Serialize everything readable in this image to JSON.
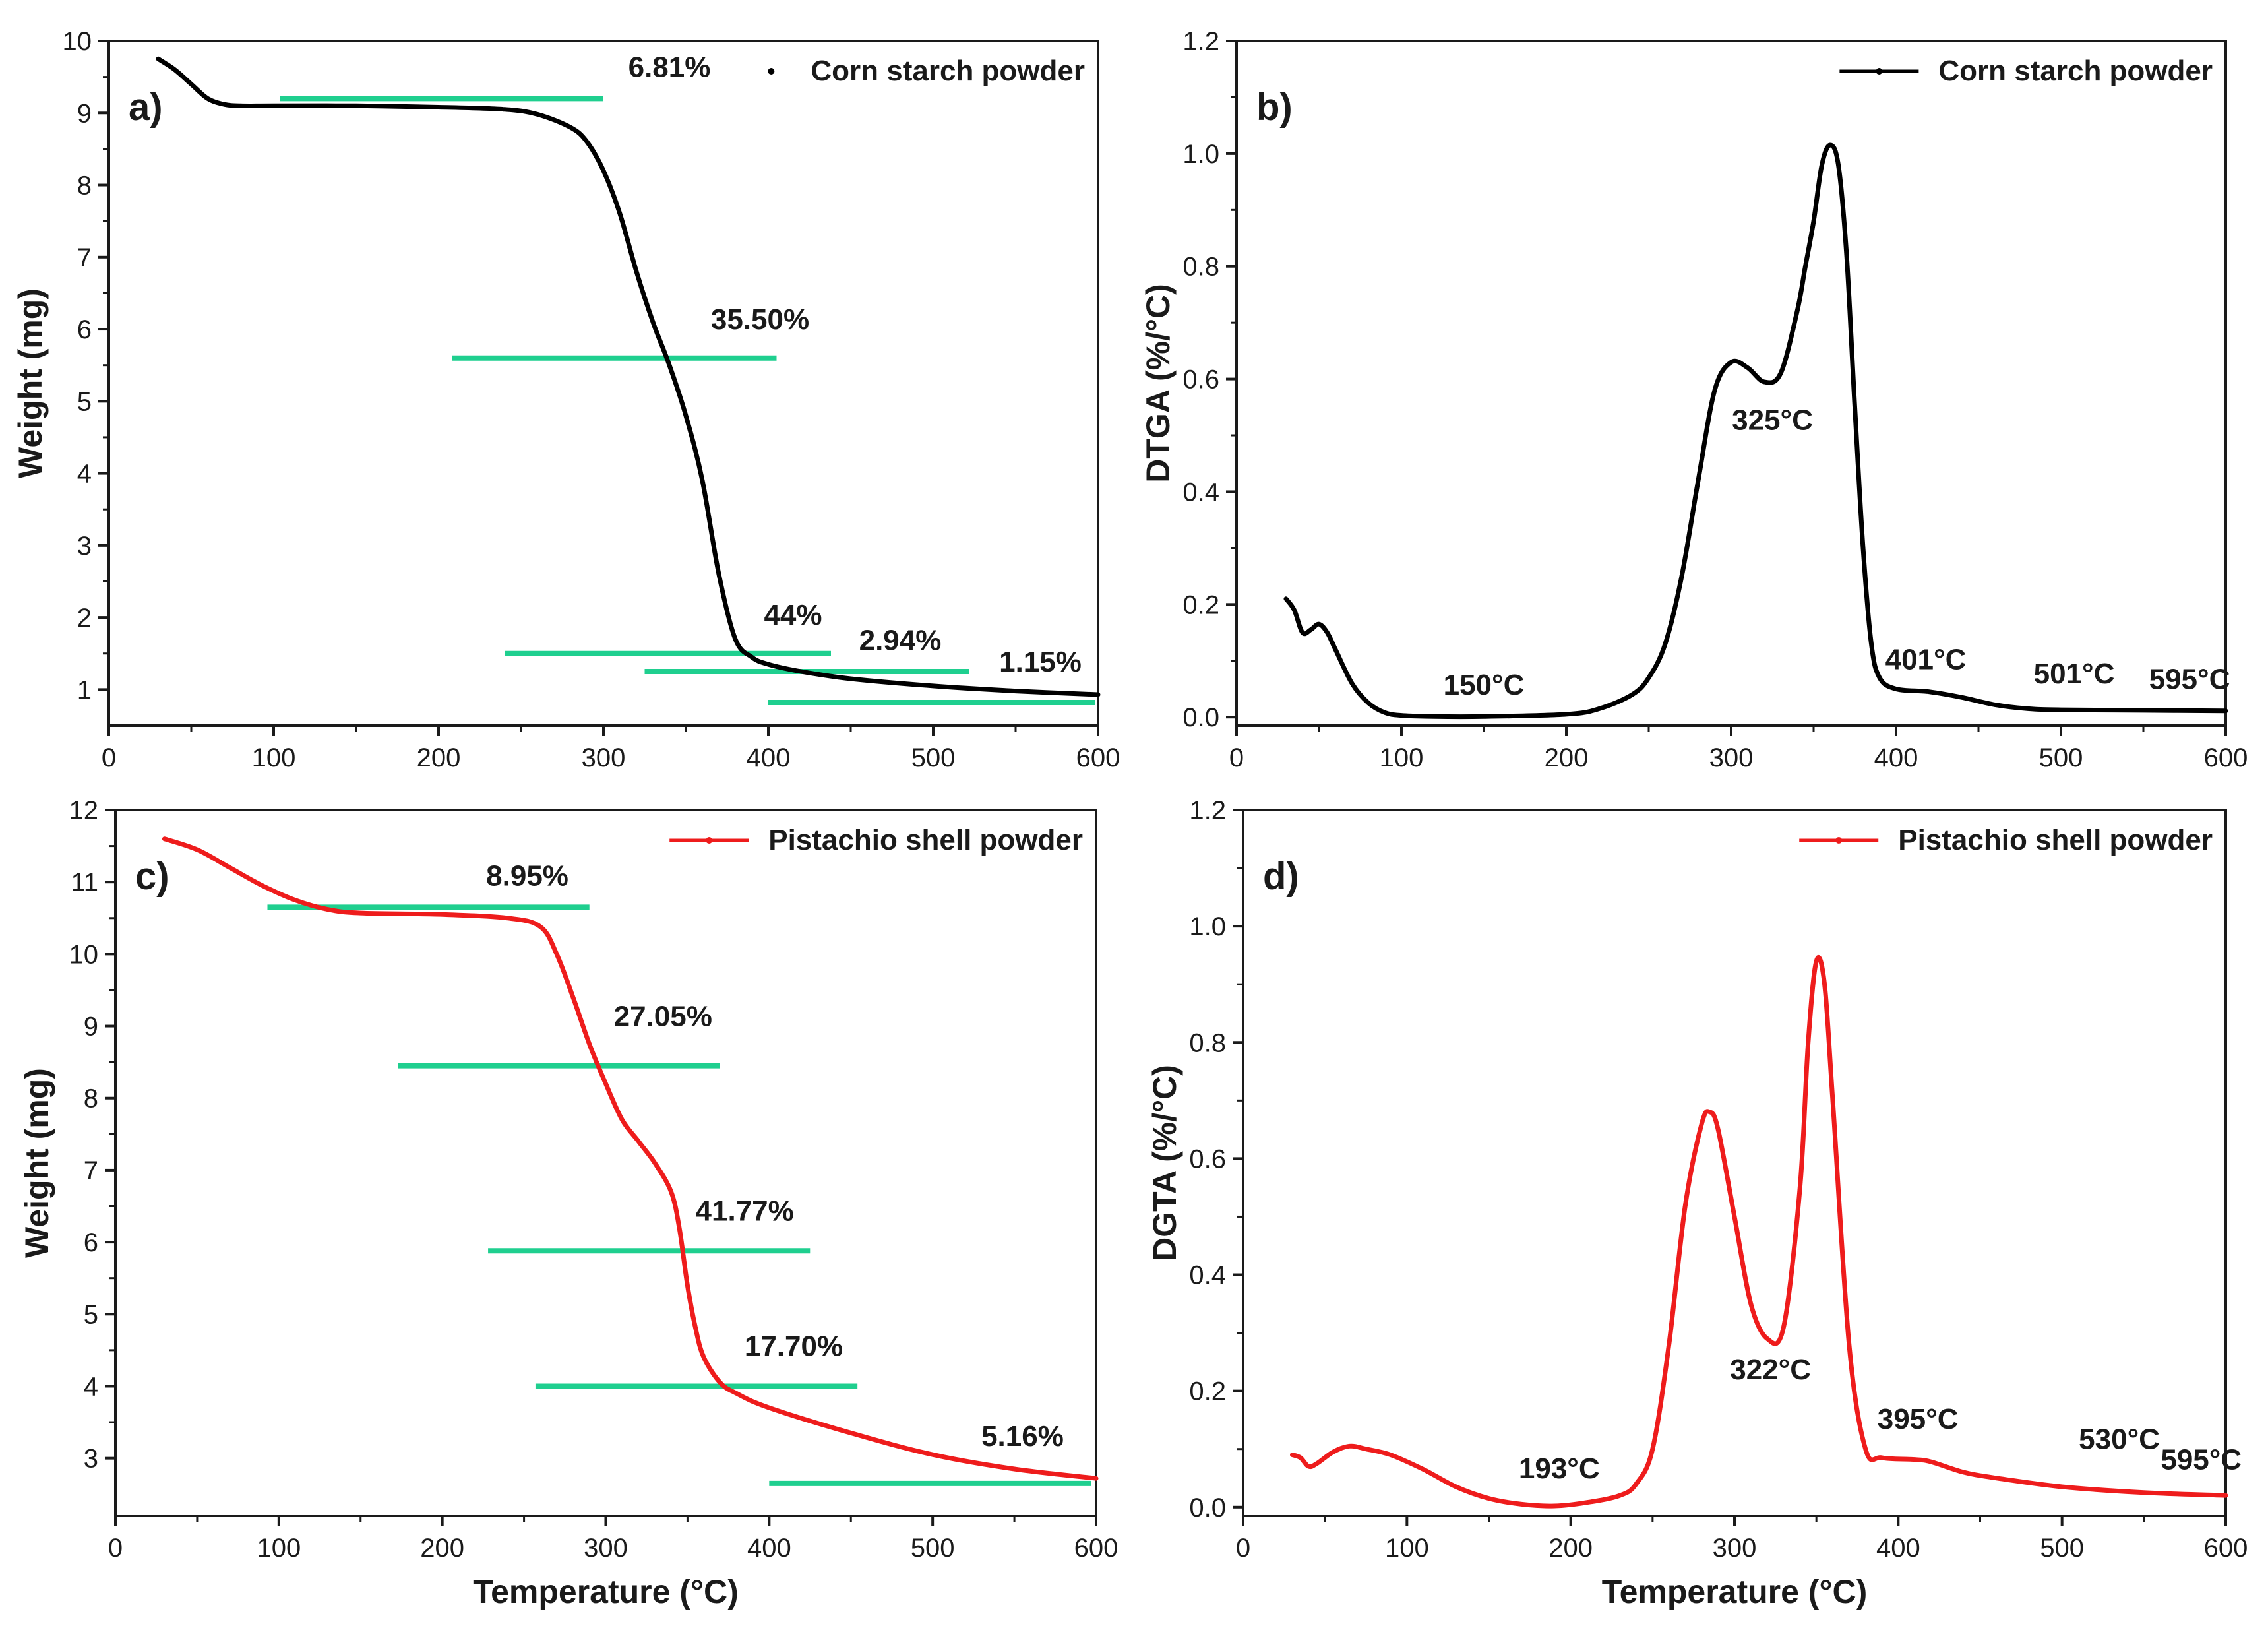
{
  "chart_data": [
    {
      "id": "a",
      "type": "line",
      "panel_label": "a)",
      "xlabel": "",
      "ylabel": "Weight (mg)",
      "xlim": [
        0,
        600
      ],
      "ylim": [
        0.5,
        10
      ],
      "x_ticks": [
        0,
        100,
        200,
        300,
        400,
        500,
        600
      ],
      "y_ticks": [
        1,
        2,
        3,
        4,
        5,
        6,
        7,
        8,
        9,
        10
      ],
      "legend": {
        "position": "top-right",
        "marker": "dot",
        "label": "Corn starch powder"
      },
      "color": "#000000",
      "series": [
        {
          "name": "Corn starch powder",
          "x": [
            30,
            40,
            50,
            60,
            70,
            80,
            100,
            150,
            200,
            240,
            260,
            280,
            290,
            300,
            310,
            320,
            330,
            340,
            350,
            360,
            370,
            380,
            390,
            400,
            420,
            450,
            500,
            550,
            600
          ],
          "y": [
            9.75,
            9.6,
            9.4,
            9.2,
            9.12,
            9.1,
            9.1,
            9.1,
            9.08,
            9.05,
            8.98,
            8.8,
            8.6,
            8.2,
            7.6,
            6.8,
            6.1,
            5.5,
            4.8,
            3.9,
            2.6,
            1.7,
            1.45,
            1.35,
            1.25,
            1.15,
            1.05,
            0.98,
            0.93
          ]
        }
      ],
      "annotations": [
        {
          "text": "6.81%",
          "x": 340,
          "y": 9.5
        },
        {
          "text": "35.50%",
          "x": 395,
          "y": 6.0
        },
        {
          "text": "44%",
          "x": 415,
          "y": 1.9
        },
        {
          "text": "2.94%",
          "x": 480,
          "y": 1.55
        },
        {
          "text": "1.15%",
          "x": 565,
          "y": 1.25
        }
      ],
      "step_lines": [
        {
          "x": [
            104,
            300
          ],
          "y": 9.2
        },
        {
          "x": [
            208,
            405
          ],
          "y": 5.6
        },
        {
          "x": [
            240,
            438
          ],
          "y": 1.5
        },
        {
          "x": [
            325,
            522
          ],
          "y": 1.25
        },
        {
          "x": [
            400,
            598
          ],
          "y": 0.82
        }
      ]
    },
    {
      "id": "b",
      "type": "line",
      "panel_label": "b)",
      "xlabel": "",
      "ylabel": "DTGA (%/°C)",
      "xlim": [
        0,
        600
      ],
      "ylim": [
        -0.015,
        1.2
      ],
      "x_ticks": [
        0,
        100,
        200,
        300,
        400,
        500,
        600
      ],
      "y_ticks": [
        0.0,
        0.2,
        0.4,
        0.6,
        0.8,
        1.0,
        1.2
      ],
      "legend": {
        "position": "top-right",
        "marker": "line-dot",
        "label": "Corn starch powder"
      },
      "color": "#000000",
      "series": [
        {
          "name": "Corn starch powder",
          "x": [
            30,
            35,
            40,
            45,
            50,
            55,
            60,
            70,
            80,
            90,
            100,
            120,
            150,
            200,
            220,
            240,
            250,
            260,
            270,
            280,
            290,
            300,
            310,
            320,
            330,
            340,
            345,
            350,
            355,
            360,
            365,
            370,
            375,
            380,
            385,
            390,
            400,
            420,
            440,
            460,
            480,
            500,
            550,
            600
          ],
          "y": [
            0.21,
            0.19,
            0.15,
            0.155,
            0.165,
            0.15,
            0.12,
            0.06,
            0.025,
            0.008,
            0.003,
            0.001,
            0.001,
            0.005,
            0.015,
            0.04,
            0.07,
            0.13,
            0.25,
            0.42,
            0.58,
            0.63,
            0.62,
            0.595,
            0.61,
            0.72,
            0.8,
            0.88,
            0.98,
            1.015,
            0.98,
            0.82,
            0.55,
            0.3,
            0.13,
            0.07,
            0.05,
            0.045,
            0.035,
            0.022,
            0.015,
            0.013,
            0.012,
            0.011
          ]
        }
      ],
      "annotations": [
        {
          "text": "150°C",
          "x": 150,
          "y": 0.04
        },
        {
          "text": "325°C",
          "x": 325,
          "y": 0.51
        },
        {
          "text": "401°C",
          "x": 418,
          "y": 0.085
        },
        {
          "text": "501°C",
          "x": 508,
          "y": 0.06
        },
        {
          "text": "595°C",
          "x": 578,
          "y": 0.05
        }
      ]
    },
    {
      "id": "c",
      "type": "line",
      "panel_label": "c)",
      "xlabel": "Temperature (°C)",
      "ylabel": "Weight (mg)",
      "xlim": [
        0,
        600
      ],
      "ylim": [
        2.2,
        12
      ],
      "x_ticks": [
        0,
        100,
        200,
        300,
        400,
        500,
        600
      ],
      "y_ticks": [
        3,
        4,
        5,
        6,
        7,
        8,
        9,
        10,
        11,
        12
      ],
      "legend": {
        "position": "top-right",
        "marker": "line-dot",
        "label": "Pistachio shell powder"
      },
      "color": "#ee1c1c",
      "series": [
        {
          "name": "Pistachio shell powder",
          "x": [
            30,
            50,
            70,
            90,
            110,
            130,
            150,
            200,
            240,
            260,
            270,
            280,
            290,
            300,
            310,
            320,
            330,
            340,
            345,
            350,
            355,
            360,
            370,
            380,
            400,
            450,
            500,
            550,
            600
          ],
          "y": [
            11.6,
            11.45,
            11.2,
            10.95,
            10.75,
            10.62,
            10.57,
            10.55,
            10.5,
            10.38,
            10.0,
            9.4,
            8.75,
            8.2,
            7.7,
            7.4,
            7.1,
            6.7,
            6.2,
            5.4,
            4.8,
            4.4,
            4.05,
            3.9,
            3.7,
            3.35,
            3.05,
            2.85,
            2.72
          ]
        }
      ],
      "annotations": [
        {
          "text": "8.95%",
          "x": 252,
          "y": 10.95
        },
        {
          "text": "27.05%",
          "x": 335,
          "y": 9.0
        },
        {
          "text": "41.77%",
          "x": 385,
          "y": 6.3
        },
        {
          "text": "17.70%",
          "x": 415,
          "y": 4.42
        },
        {
          "text": "5.16%",
          "x": 555,
          "y": 3.17
        }
      ],
      "step_lines": [
        {
          "x": [
            93,
            290
          ],
          "y": 10.65
        },
        {
          "x": [
            173,
            370
          ],
          "y": 8.45
        },
        {
          "x": [
            228,
            425
          ],
          "y": 5.88
        },
        {
          "x": [
            257,
            454
          ],
          "y": 4.0
        },
        {
          "x": [
            400,
            597
          ],
          "y": 2.65
        }
      ]
    },
    {
      "id": "d",
      "type": "line",
      "panel_label": "d)",
      "xlabel": "Temperature (°C)",
      "ylabel": "DGTA (%/°C)",
      "xlim": [
        0,
        600
      ],
      "ylim": [
        -0.015,
        1.2
      ],
      "x_ticks": [
        0,
        100,
        200,
        300,
        400,
        500,
        600
      ],
      "y_ticks": [
        0.0,
        0.2,
        0.4,
        0.6,
        0.8,
        1.0,
        1.2
      ],
      "legend": {
        "position": "top-right",
        "marker": "line-dot",
        "label": "Pistachio shell powder"
      },
      "color": "#ee1c1c",
      "series": [
        {
          "name": "Pistachio shell powder",
          "x": [
            30,
            35,
            40,
            45,
            55,
            65,
            75,
            90,
            110,
            130,
            150,
            170,
            190,
            210,
            230,
            240,
            250,
            260,
            270,
            280,
            285,
            290,
            300,
            310,
            320,
            330,
            340,
            345,
            350,
            355,
            360,
            370,
            380,
            390,
            410,
            420,
            440,
            460,
            500,
            550,
            600
          ],
          "y": [
            0.09,
            0.085,
            0.07,
            0.075,
            0.095,
            0.105,
            0.1,
            0.09,
            0.065,
            0.035,
            0.015,
            0.005,
            0.002,
            0.008,
            0.02,
            0.04,
            0.1,
            0.28,
            0.52,
            0.66,
            0.68,
            0.65,
            0.5,
            0.35,
            0.29,
            0.31,
            0.55,
            0.8,
            0.94,
            0.9,
            0.7,
            0.28,
            0.1,
            0.085,
            0.082,
            0.078,
            0.06,
            0.05,
            0.035,
            0.025,
            0.02
          ]
        }
      ],
      "annotations": [
        {
          "text": "193°C",
          "x": 193,
          "y": 0.05
        },
        {
          "text": "322°C",
          "x": 322,
          "y": 0.22
        },
        {
          "text": "395°C",
          "x": 412,
          "y": 0.135
        },
        {
          "text": "530°C",
          "x": 535,
          "y": 0.1
        },
        {
          "text": "595°C",
          "x": 585,
          "y": 0.065
        }
      ]
    }
  ],
  "colors": {
    "step_line": "#1fcf8f",
    "axis": "#1a1a1a"
  }
}
